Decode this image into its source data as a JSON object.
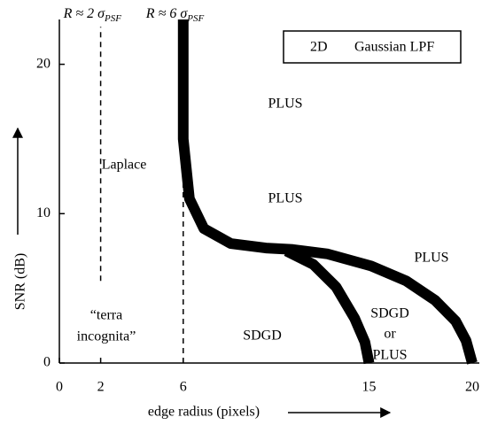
{
  "chart_data": {
    "type": "line",
    "ylabel": "SNR (dB)",
    "xlabel": "edge radius (pixels)",
    "xlim": [
      0,
      20
    ],
    "ylim": [
      0,
      23
    ],
    "xticks": [
      0,
      2,
      6,
      15,
      20
    ],
    "yticks": [
      0,
      10,
      20
    ],
    "series": [
      {
        "color": "#000000",
        "x": [
          6,
          6,
          6.3,
          7,
          8.3,
          10,
          11.3,
          13,
          15.1,
          16.8,
          18.2,
          19.2,
          19.7,
          20
        ],
        "values": [
          23,
          15,
          11,
          9,
          8,
          7.7,
          7.6,
          7.3,
          6.5,
          5.5,
          4.2,
          2.8,
          1.5,
          0
        ]
      },
      {
        "color": "#000000",
        "x": [
          11,
          12.3,
          13.4,
          14.3,
          14.8,
          15
        ],
        "values": [
          7.5,
          6.6,
          5.1,
          3,
          1.4,
          0
        ]
      }
    ],
    "ref_lines": [
      {
        "x": 2,
        "y": [
          5.5,
          22.5
        ]
      },
      {
        "x": 6,
        "y": [
          0,
          12
        ]
      }
    ],
    "ref_labels": [
      {
        "main": "R ≈ 2 σ",
        "sub": "PSF"
      },
      {
        "main": "R ≈ 6 σ",
        "sub": "PSF"
      }
    ],
    "legend": [
      "2D",
      "Gaussian LPF"
    ],
    "annotations": [
      "PLUS",
      "PLUS",
      "PLUS",
      "Laplace",
      "“terra",
      "incognita”",
      "SDGD",
      "SDGD",
      "or",
      "PLUS"
    ]
  }
}
